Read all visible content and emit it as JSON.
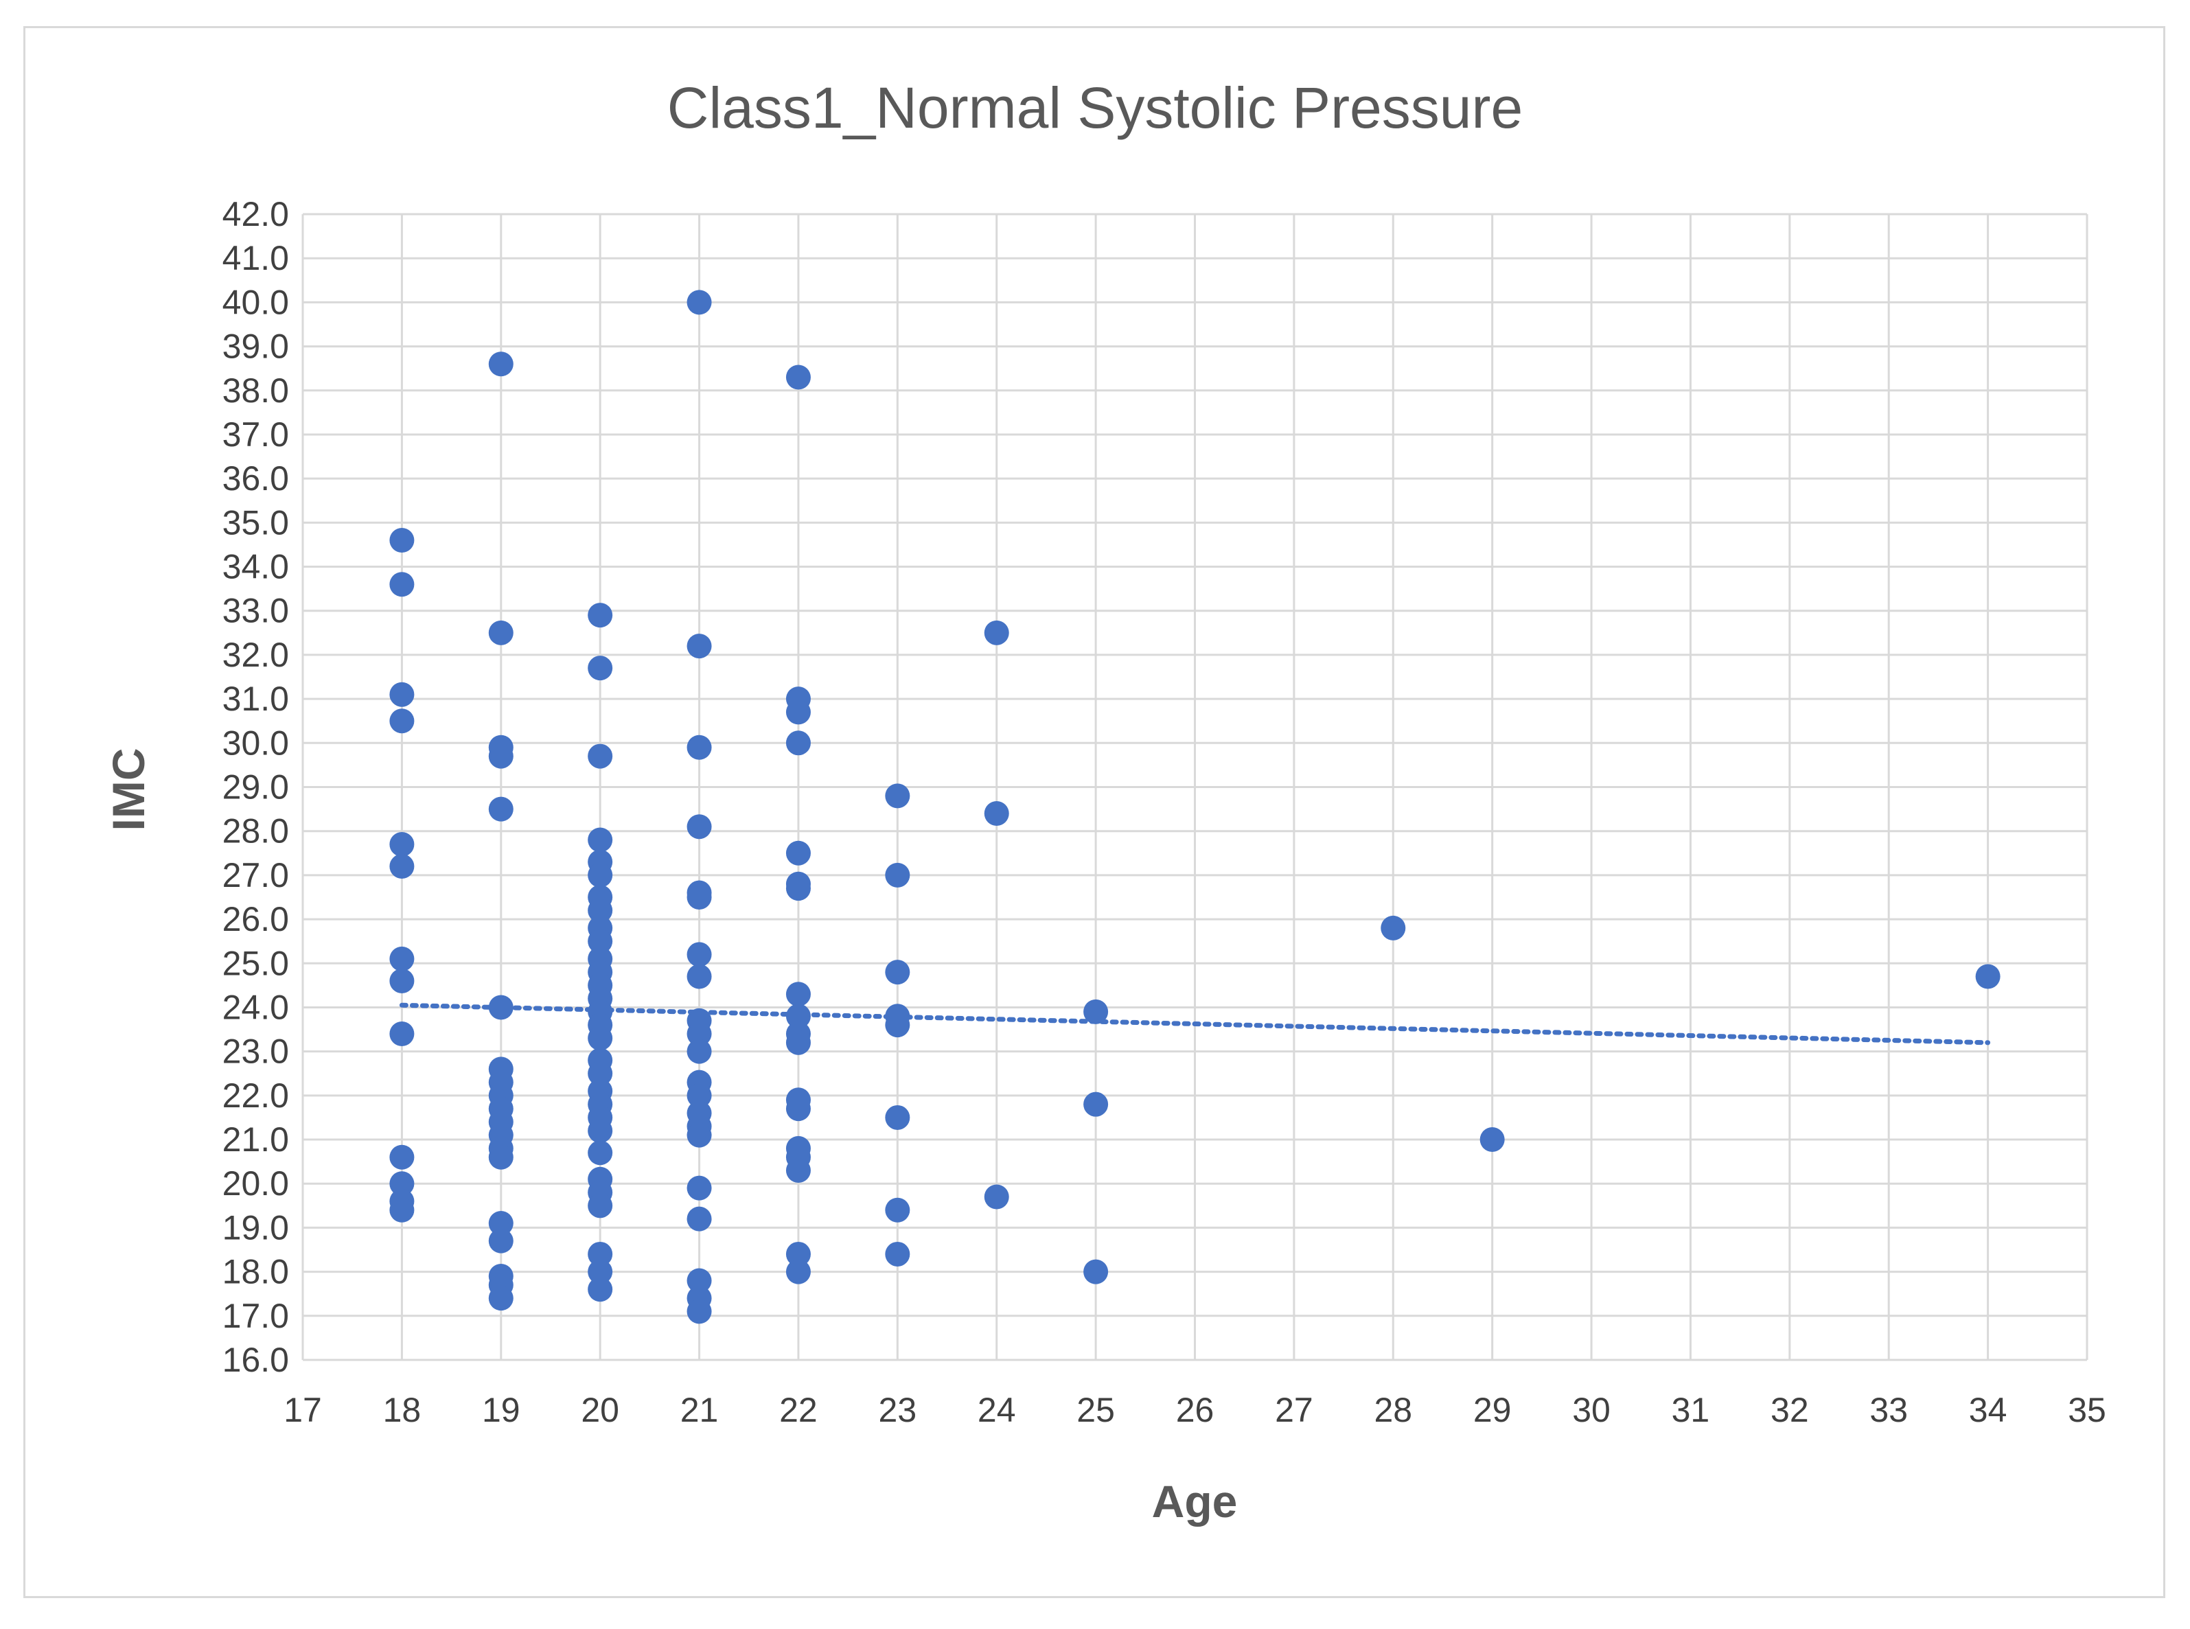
{
  "chart_data": {
    "type": "scatter",
    "title": "Class1_Normal Systolic Pressure",
    "xlabel": "Age",
    "ylabel": "IMC",
    "xlim": [
      17,
      35
    ],
    "ylim": [
      16.0,
      42.0
    ],
    "xticks": [
      "17",
      "18",
      "19",
      "20",
      "21",
      "22",
      "23",
      "24",
      "25",
      "26",
      "27",
      "28",
      "29",
      "30",
      "31",
      "32",
      "33",
      "34",
      "35"
    ],
    "yticks": [
      "16.0",
      "17.0",
      "18.0",
      "19.0",
      "20.0",
      "21.0",
      "22.0",
      "23.0",
      "24.0",
      "25.0",
      "26.0",
      "27.0",
      "28.0",
      "29.0",
      "30.0",
      "31.0",
      "32.0",
      "33.0",
      "34.0",
      "35.0",
      "36.0",
      "37.0",
      "38.0",
      "39.0",
      "40.0",
      "41.0",
      "42.0"
    ],
    "grid": true,
    "marker_color": "#4472c4",
    "series": [
      {
        "name": "IMC",
        "points": [
          [
            18,
            34.6
          ],
          [
            18,
            33.6
          ],
          [
            18,
            31.1
          ],
          [
            18,
            30.5
          ],
          [
            18,
            27.7
          ],
          [
            18,
            27.2
          ],
          [
            18,
            25.1
          ],
          [
            18,
            24.6
          ],
          [
            18,
            23.4
          ],
          [
            18,
            20.6
          ],
          [
            18,
            20.0
          ],
          [
            18,
            19.6
          ],
          [
            18,
            19.4
          ],
          [
            19,
            38.6
          ],
          [
            19,
            32.5
          ],
          [
            19,
            29.9
          ],
          [
            19,
            29.7
          ],
          [
            19,
            28.5
          ],
          [
            19,
            24.0
          ],
          [
            19,
            22.6
          ],
          [
            19,
            22.3
          ],
          [
            19,
            22.0
          ],
          [
            19,
            21.7
          ],
          [
            19,
            21.4
          ],
          [
            19,
            21.1
          ],
          [
            19,
            20.8
          ],
          [
            19,
            20.6
          ],
          [
            19,
            19.1
          ],
          [
            19,
            18.7
          ],
          [
            19,
            17.9
          ],
          [
            19,
            17.7
          ],
          [
            19,
            17.4
          ],
          [
            20,
            32.9
          ],
          [
            20,
            31.7
          ],
          [
            20,
            29.7
          ],
          [
            20,
            27.8
          ],
          [
            20,
            27.3
          ],
          [
            20,
            27.0
          ],
          [
            20,
            26.5
          ],
          [
            20,
            26.2
          ],
          [
            20,
            25.8
          ],
          [
            20,
            25.5
          ],
          [
            20,
            25.1
          ],
          [
            20,
            24.8
          ],
          [
            20,
            24.5
          ],
          [
            20,
            24.2
          ],
          [
            20,
            23.9
          ],
          [
            20,
            23.6
          ],
          [
            20,
            23.3
          ],
          [
            20,
            22.8
          ],
          [
            20,
            22.5
          ],
          [
            20,
            22.1
          ],
          [
            20,
            21.8
          ],
          [
            20,
            21.5
          ],
          [
            20,
            21.2
          ],
          [
            20,
            20.7
          ],
          [
            20,
            20.1
          ],
          [
            20,
            19.8
          ],
          [
            20,
            19.5
          ],
          [
            20,
            18.4
          ],
          [
            20,
            18.0
          ],
          [
            20,
            17.6
          ],
          [
            21,
            40.0
          ],
          [
            21,
            32.2
          ],
          [
            21,
            29.9
          ],
          [
            21,
            28.1
          ],
          [
            21,
            26.6
          ],
          [
            21,
            26.5
          ],
          [
            21,
            25.2
          ],
          [
            21,
            24.7
          ],
          [
            21,
            23.7
          ],
          [
            21,
            23.4
          ],
          [
            21,
            23.0
          ],
          [
            21,
            22.3
          ],
          [
            21,
            22.0
          ],
          [
            21,
            21.6
          ],
          [
            21,
            21.3
          ],
          [
            21,
            21.1
          ],
          [
            21,
            19.9
          ],
          [
            21,
            19.2
          ],
          [
            21,
            17.8
          ],
          [
            21,
            17.4
          ],
          [
            21,
            17.1
          ],
          [
            22,
            38.3
          ],
          [
            22,
            31.0
          ],
          [
            22,
            30.7
          ],
          [
            22,
            30.0
          ],
          [
            22,
            27.5
          ],
          [
            22,
            26.8
          ],
          [
            22,
            26.7
          ],
          [
            22,
            24.3
          ],
          [
            22,
            23.8
          ],
          [
            22,
            23.4
          ],
          [
            22,
            23.2
          ],
          [
            22,
            21.9
          ],
          [
            22,
            21.7
          ],
          [
            22,
            20.8
          ],
          [
            22,
            20.6
          ],
          [
            22,
            20.3
          ],
          [
            22,
            18.4
          ],
          [
            22,
            18.0
          ],
          [
            23,
            28.8
          ],
          [
            23,
            27.0
          ],
          [
            23,
            24.8
          ],
          [
            23,
            23.8
          ],
          [
            23,
            23.6
          ],
          [
            23,
            21.5
          ],
          [
            23,
            19.4
          ],
          [
            23,
            18.4
          ],
          [
            24,
            32.5
          ],
          [
            24,
            28.4
          ],
          [
            24,
            19.7
          ],
          [
            25,
            23.9
          ],
          [
            25,
            21.8
          ],
          [
            25,
            18.0
          ],
          [
            28,
            25.8
          ],
          [
            29,
            21.0
          ],
          [
            34,
            24.7
          ]
        ]
      }
    ],
    "trendline": {
      "style": "dotted",
      "start": [
        18,
        24.05
      ],
      "end": [
        34,
        23.2
      ]
    }
  }
}
